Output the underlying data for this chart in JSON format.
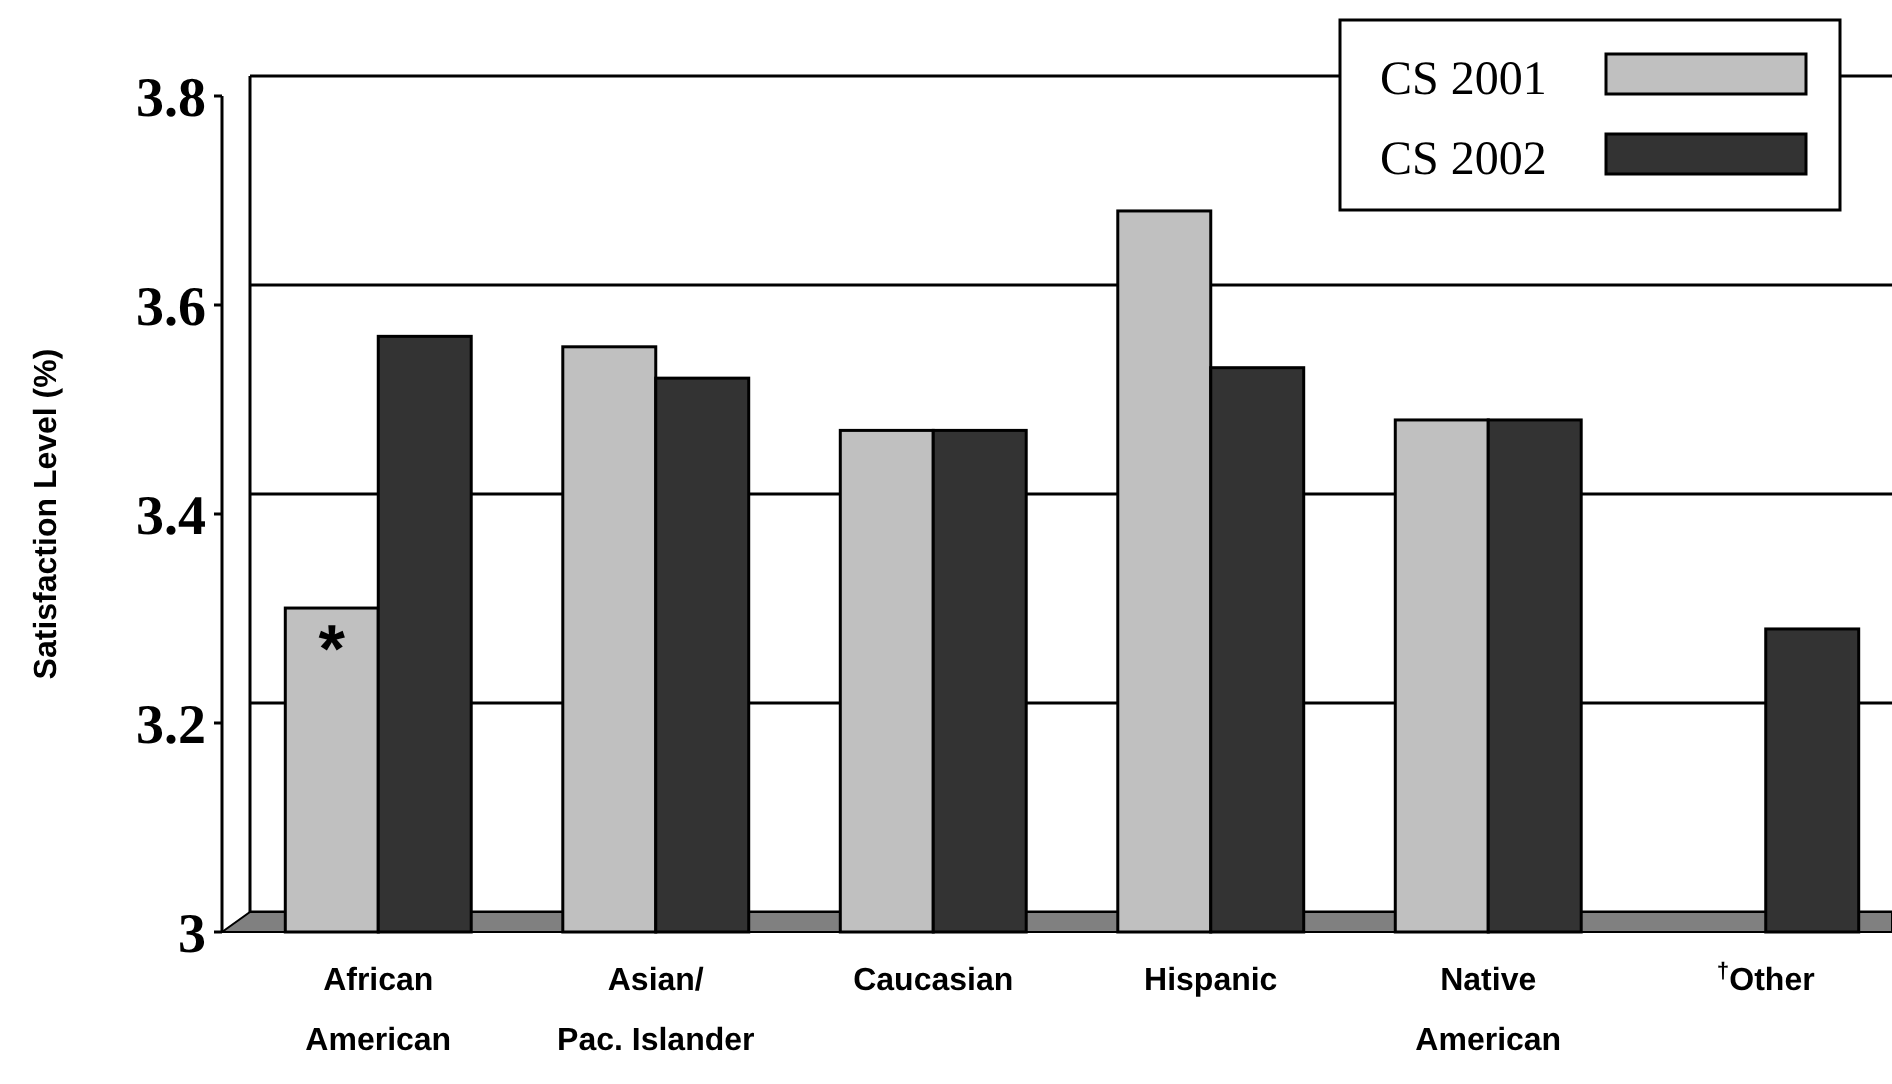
{
  "chart_data": {
    "type": "bar",
    "ylabel": "Satisfaction Level (%)",
    "categories": [
      "African American",
      "Asian/ Pac. Islander",
      "Caucasian",
      "Hispanic",
      "Native American",
      "$^{†}$Other"
    ],
    "series": [
      {
        "name": "CS 2001",
        "color": "#c0c0c0",
        "values": [
          3.31,
          3.56,
          3.48,
          3.69,
          3.49,
          null
        ]
      },
      {
        "name": "CS 2002",
        "color": "#333333",
        "values": [
          3.57,
          3.53,
          3.48,
          3.54,
          3.49,
          3.29
        ]
      }
    ],
    "ylim": [
      3,
      3.8
    ],
    "yticks": [
      3,
      3.2,
      3.4,
      3.6,
      3.8
    ],
    "grid": "y",
    "legend": "top right",
    "annotations": [
      {
        "text": "*",
        "x": "African American",
        "y": 3.31
      }
    ]
  }
}
